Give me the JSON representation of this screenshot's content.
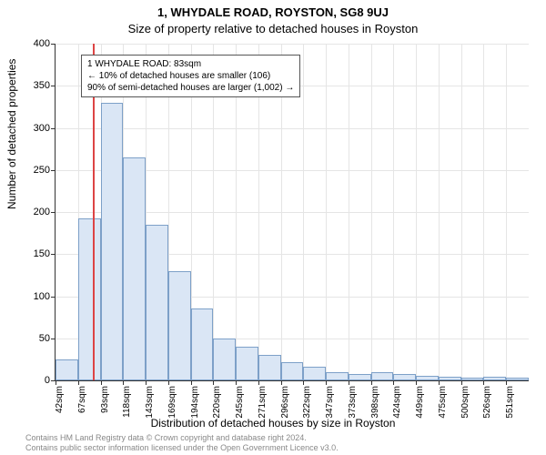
{
  "title_line1": "1, WHYDALE ROAD, ROYSTON, SG8 9UJ",
  "title_line2": "Size of property relative to detached houses in Royston",
  "ylabel": "Number of detached properties",
  "xlabel": "Distribution of detached houses by size in Royston",
  "footer_line1": "Contains HM Land Registry data © Crown copyright and database right 2024.",
  "footer_line2": "Contains public sector information licensed under the Open Government Licence v3.0.",
  "annotation": {
    "line1": "1 WHYDALE ROAD: 83sqm",
    "line2": "← 10% of detached houses are smaller (106)",
    "line3": "90% of semi-detached houses are larger (1,002) →"
  },
  "chart": {
    "type": "histogram",
    "ylim": [
      0,
      400
    ],
    "ytick_step": 50,
    "yticks": [
      0,
      50,
      100,
      150,
      200,
      250,
      300,
      350,
      400
    ],
    "x_start": 42,
    "x_step": 25.4,
    "xticks_labels": [
      "42sqm",
      "67sqm",
      "93sqm",
      "118sqm",
      "143sqm",
      "169sqm",
      "194sqm",
      "220sqm",
      "245sqm",
      "271sqm",
      "296sqm",
      "322sqm",
      "347sqm",
      "373sqm",
      "398sqm",
      "424sqm",
      "449sqm",
      "475sqm",
      "500sqm",
      "526sqm",
      "551sqm"
    ],
    "bar_values": [
      25,
      192,
      330,
      265,
      185,
      130,
      85,
      50,
      40,
      30,
      22,
      16,
      10,
      8,
      10,
      8,
      5,
      4,
      3,
      4,
      3
    ],
    "bar_fill": "#dae6f5",
    "bar_border": "#7da0c8",
    "reference_line_bin_index": 1.64,
    "reference_line_color": "#dd4444",
    "grid_color": "#e5e5e5",
    "background_color": "#ffffff",
    "axis_color": "#333333",
    "font_family": "Arial",
    "title_fontsize": 13,
    "axis_label_fontsize": 12,
    "tick_fontsize": 11,
    "annotation_fontsize": 10
  }
}
